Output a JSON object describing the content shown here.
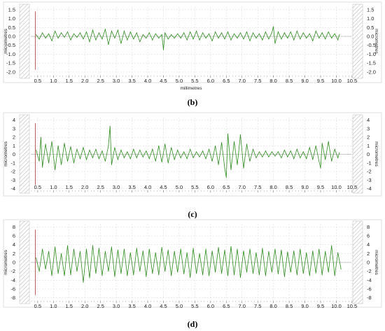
{
  "chart_data": [
    {
      "type": "line",
      "panel_label": "(b)",
      "xlabel": "millimetres",
      "ylabel": "micrometres",
      "xlim": [
        0.28,
        10.48
      ],
      "ylim": [
        -2.2,
        1.65
      ],
      "xticks": [
        "0.5",
        "1.0",
        "1.5",
        "2.0",
        "2.5",
        "3.0",
        "3.5",
        "4.0",
        "4.5",
        "5.0",
        "5.5",
        "6.0",
        "6.5",
        "7.0",
        "7.5",
        "8.0",
        "8.5",
        "9.0",
        "9.5",
        "10.0",
        "10.5"
      ],
      "yticks": [
        "1.5",
        "1.0",
        "0.5",
        "0.0",
        "-0.5",
        "-1.0",
        "-1.5",
        "-2.0"
      ],
      "grid": true,
      "series_color": "#2e8b1f",
      "series": [
        {
          "x": [
            0.45,
            0.55,
            0.65,
            0.75,
            0.85,
            0.95,
            1.05,
            1.15,
            1.25,
            1.35,
            1.45,
            1.55,
            1.65,
            1.75,
            1.85,
            1.95,
            2.05,
            2.15,
            2.25,
            2.35,
            2.45,
            2.55,
            2.65,
            2.75,
            2.85,
            2.95,
            3.05,
            3.15,
            3.25,
            3.35,
            3.45,
            3.55,
            3.65,
            3.75,
            3.85,
            3.95,
            4.05,
            4.15,
            4.25,
            4.35,
            4.45,
            4.5,
            4.55,
            4.65,
            4.75,
            4.85,
            4.95,
            5.05,
            5.15,
            5.25,
            5.35,
            5.45,
            5.55,
            5.65,
            5.75,
            5.85,
            5.95,
            6.05,
            6.15,
            6.25,
            6.35,
            6.45,
            6.55,
            6.65,
            6.75,
            6.85,
            6.95,
            7.05,
            7.15,
            7.25,
            7.35,
            7.45,
            7.55,
            7.65,
            7.75,
            7.85,
            7.95,
            8.0,
            8.05,
            8.15,
            8.25,
            8.35,
            8.45,
            8.55,
            8.65,
            8.75,
            8.85,
            8.95,
            9.05,
            9.15,
            9.25,
            9.35,
            9.45,
            9.55,
            9.65,
            9.75,
            9.85,
            9.95,
            10.05,
            10.1
          ],
          "y": [
            0.1,
            -0.15,
            0.2,
            -0.1,
            0.15,
            -0.25,
            0.3,
            -0.1,
            0.2,
            -0.05,
            0.25,
            -0.2,
            0.15,
            -0.05,
            0.2,
            -0.15,
            0.25,
            -0.3,
            0.35,
            -0.2,
            0.2,
            -0.15,
            0.4,
            -0.45,
            0.3,
            -0.1,
            0.35,
            -0.4,
            0.3,
            -0.2,
            0.25,
            -0.15,
            0.2,
            -0.3,
            0.1,
            -0.1,
            0.2,
            -0.2,
            0.15,
            -0.1,
            0.1,
            -0.75,
            0.2,
            -0.15,
            0.1,
            -0.1,
            0.15,
            -0.1,
            0.2,
            -0.2,
            0.25,
            -0.15,
            0.3,
            -0.2,
            0.2,
            -0.1,
            0.15,
            -0.25,
            0.25,
            -0.1,
            0.2,
            -0.15,
            0.25,
            -0.2,
            0.15,
            -0.1,
            0.2,
            -0.15,
            0.25,
            -0.25,
            0.2,
            -0.1,
            0.15,
            -0.2,
            0.25,
            -0.15,
            0.2,
            0.55,
            -0.4,
            0.25,
            -0.15,
            0.2,
            -0.1,
            0.25,
            -0.2,
            0.3,
            -0.15,
            0.2,
            -0.1,
            0.15,
            -0.25,
            0.3,
            -0.1,
            0.2,
            -0.15,
            0.25,
            -0.1,
            0.15,
            -0.2,
            0.1
          ]
        }
      ]
    },
    {
      "type": "line",
      "panel_label": "(c)",
      "xlabel": "",
      "ylabel": "micrometres",
      "xlim": [
        0.28,
        10.48
      ],
      "ylim": [
        -4.2,
        4.3
      ],
      "xticks": [
        "0.5",
        "1.0",
        "1.5",
        "2.0",
        "2.5",
        "3.0",
        "3.5",
        "4.0",
        "4.5",
        "5.0",
        "5.5",
        "6.0",
        "6.5",
        "7.0",
        "7.5",
        "8.0",
        "8.5",
        "9.0",
        "9.5",
        "10.0",
        "10.5"
      ],
      "yticks": [
        "4",
        "3",
        "2",
        "1",
        "0",
        "-1",
        "-2",
        "-3",
        "-4"
      ],
      "grid": true,
      "series_color": "#2e8b1f",
      "series": [
        {
          "x": [
            0.45,
            0.55,
            0.6,
            0.65,
            0.75,
            0.85,
            0.95,
            1.05,
            1.15,
            1.25,
            1.35,
            1.45,
            1.55,
            1.65,
            1.75,
            1.85,
            1.95,
            2.05,
            2.15,
            2.25,
            2.35,
            2.45,
            2.55,
            2.65,
            2.75,
            2.8,
            2.85,
            2.95,
            3.05,
            3.15,
            3.25,
            3.35,
            3.45,
            3.55,
            3.65,
            3.75,
            3.85,
            3.95,
            4.05,
            4.15,
            4.25,
            4.35,
            4.45,
            4.55,
            4.65,
            4.75,
            4.85,
            4.95,
            5.05,
            5.15,
            5.25,
            5.35,
            5.45,
            5.55,
            5.65,
            5.75,
            5.85,
            5.95,
            6.05,
            6.15,
            6.25,
            6.35,
            6.45,
            6.5,
            6.55,
            6.65,
            6.75,
            6.85,
            6.95,
            7.05,
            7.15,
            7.25,
            7.35,
            7.45,
            7.55,
            7.65,
            7.75,
            7.85,
            7.95,
            8.05,
            8.15,
            8.25,
            8.35,
            8.45,
            8.55,
            8.65,
            8.75,
            8.85,
            8.95,
            9.05,
            9.15,
            9.25,
            9.35,
            9.45,
            9.5,
            9.55,
            9.65,
            9.75,
            9.85,
            9.95,
            10.05,
            10.1
          ],
          "y": [
            0.5,
            -0.8,
            2.0,
            -1.5,
            1.2,
            -1.0,
            1.5,
            -1.8,
            1.0,
            -1.2,
            1.3,
            -0.8,
            0.9,
            -1.0,
            0.6,
            -0.5,
            0.8,
            -0.6,
            0.5,
            -0.4,
            0.6,
            -0.5,
            0.4,
            -0.8,
            1.0,
            3.3,
            -1.2,
            0.8,
            -0.6,
            0.5,
            -0.4,
            0.3,
            -0.5,
            0.6,
            -0.4,
            0.5,
            -0.3,
            0.4,
            -0.5,
            0.6,
            -0.8,
            1.0,
            -0.9,
            1.2,
            -1.0,
            0.8,
            -0.6,
            0.5,
            -0.4,
            0.3,
            -0.5,
            0.6,
            -0.4,
            0.3,
            -0.3,
            0.4,
            -0.5,
            0.6,
            -0.8,
            1.0,
            -1.2,
            1.4,
            -1.6,
            -2.7,
            2.4,
            -1.8,
            1.5,
            -1.2,
            2.3,
            -1.6,
            1.2,
            -0.8,
            0.6,
            -0.4,
            0.3,
            -0.3,
            0.4,
            -0.3,
            0.3,
            -0.2,
            0.3,
            -0.4,
            0.5,
            -0.3,
            0.4,
            -0.5,
            0.6,
            -0.4,
            0.3,
            -0.5,
            0.8,
            -0.6,
            1.0,
            -0.8,
            -1.6,
            1.3,
            -0.6,
            1.5,
            -0.8,
            0.6,
            -0.4,
            0.2
          ]
        }
      ]
    },
    {
      "type": "line",
      "panel_label": "(d)",
      "xlabel": "",
      "ylabel": "micrometres",
      "xlim": [
        0.28,
        10.48
      ],
      "ylim": [
        -8.7,
        8.7
      ],
      "xticks": [
        "0.5",
        "1.0",
        "1.5",
        "2.0",
        "2.5",
        "3.0",
        "3.5",
        "4.0",
        "4.5",
        "5.0",
        "5.5",
        "6.0",
        "6.5",
        "7.0",
        "7.5",
        "8.0",
        "8.5",
        "9.0",
        "9.5",
        "10.0",
        "10.5"
      ],
      "yticks": [
        "8",
        "6",
        "4",
        "2",
        "0",
        "-2",
        "-4",
        "-6",
        "-8"
      ],
      "grid": true,
      "series_color": "#2e8b1f",
      "series": [
        {
          "x": [
            0.45,
            0.55,
            0.65,
            0.75,
            0.85,
            0.95,
            1.05,
            1.15,
            1.25,
            1.35,
            1.45,
            1.55,
            1.65,
            1.75,
            1.85,
            1.95,
            2.05,
            2.15,
            2.25,
            2.35,
            2.45,
            2.55,
            2.65,
            2.75,
            2.85,
            2.95,
            3.05,
            3.15,
            3.25,
            3.35,
            3.45,
            3.55,
            3.65,
            3.75,
            3.85,
            3.95,
            4.05,
            4.15,
            4.25,
            4.35,
            4.45,
            4.55,
            4.65,
            4.75,
            4.85,
            4.95,
            5.05,
            5.15,
            5.25,
            5.35,
            5.45,
            5.55,
            5.65,
            5.75,
            5.85,
            5.95,
            6.05,
            6.15,
            6.25,
            6.35,
            6.45,
            6.55,
            6.65,
            6.75,
            6.85,
            6.95,
            7.05,
            7.15,
            7.25,
            7.35,
            7.45,
            7.55,
            7.65,
            7.75,
            7.85,
            7.95,
            8.05,
            8.15,
            8.25,
            8.35,
            8.45,
            8.55,
            8.65,
            8.75,
            8.85,
            8.95,
            9.05,
            9.15,
            9.25,
            9.35,
            9.45,
            9.55,
            9.65,
            9.75,
            9.85,
            9.95,
            10.05,
            10.15
          ],
          "y": [
            1.0,
            -2.0,
            3.0,
            -1.5,
            2.5,
            -3.0,
            3.5,
            -2.5,
            2.0,
            -3.0,
            3.8,
            -2.8,
            3.0,
            -2.0,
            2.5,
            -4.5,
            3.0,
            -3.5,
            3.8,
            -2.5,
            3.2,
            -3.0,
            2.5,
            -2.0,
            3.5,
            -3.2,
            2.8,
            -2.5,
            3.0,
            -3.0,
            2.2,
            -2.8,
            3.2,
            -2.0,
            2.6,
            -3.2,
            3.0,
            -2.5,
            2.2,
            -2.8,
            3.4,
            -2.0,
            2.8,
            -3.0,
            2.5,
            -2.2,
            3.0,
            -2.6,
            2.2,
            -3.4,
            3.2,
            -2.5,
            2.0,
            -2.8,
            3.0,
            -3.0,
            2.6,
            -2.2,
            3.4,
            -2.5,
            2.8,
            -3.0,
            3.6,
            -2.8,
            3.0,
            -3.4,
            2.6,
            -2.2,
            3.0,
            -2.5,
            2.2,
            -2.8,
            3.2,
            -3.0,
            2.5,
            -2.2,
            3.0,
            -2.6,
            2.8,
            -3.2,
            2.4,
            -2.2,
            2.6,
            -2.8,
            3.0,
            -2.5,
            2.2,
            -3.0,
            2.6,
            -2.4,
            3.0,
            -2.8,
            2.5,
            -2.2,
            3.8,
            -3.0,
            2.2,
            -1.5
          ]
        }
      ]
    }
  ]
}
